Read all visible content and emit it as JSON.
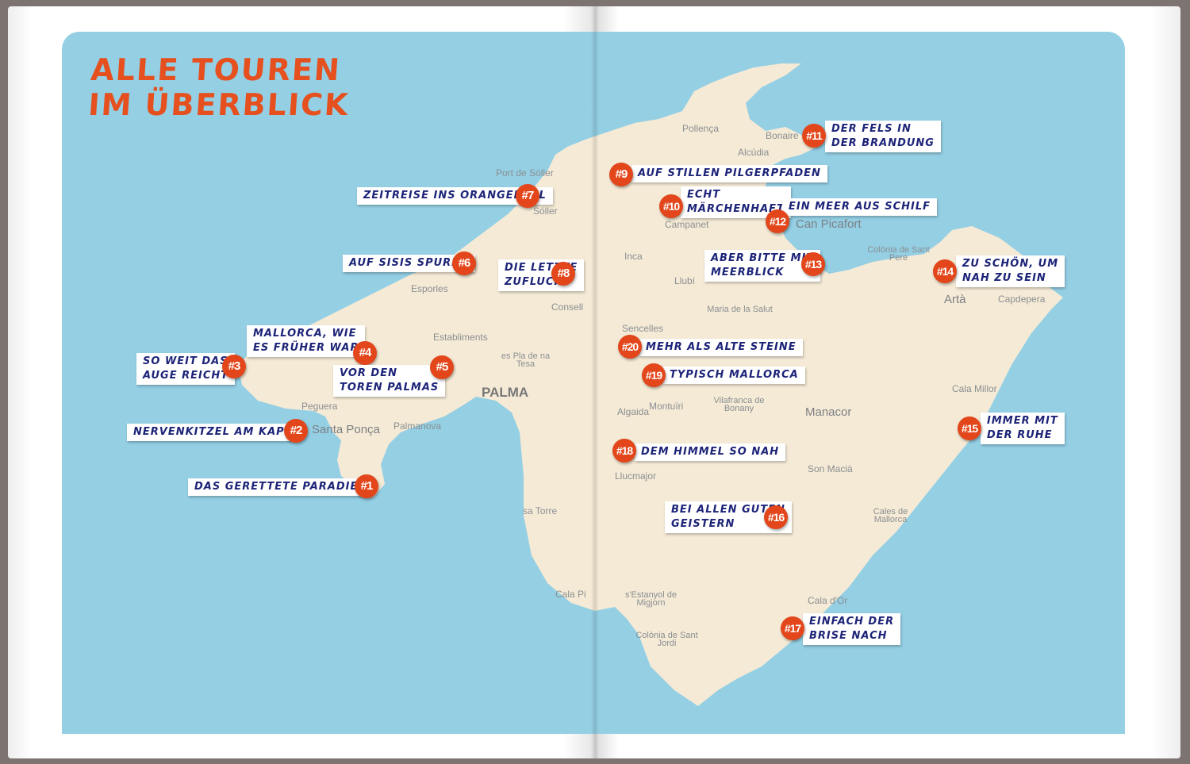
{
  "title": {
    "line1": "ALLE TOUREN",
    "line2": "IM ÜBERBLICK"
  },
  "colors": {
    "sea": "#94cfe4",
    "land": "#f5ead6",
    "title": "#e5501e",
    "badge": "#e2461a",
    "label_text": "#1d2478"
  },
  "tours": [
    {
      "number": "#1",
      "lines": [
        "Das gerettete Paradies"
      ]
    },
    {
      "number": "#2",
      "lines": [
        "Nervenkitzel am Kap"
      ]
    },
    {
      "number": "#3",
      "lines": [
        "So weit das",
        "Auge reicht"
      ]
    },
    {
      "number": "#4",
      "lines": [
        "Mallorca, wie",
        "es früher war"
      ]
    },
    {
      "number": "#5",
      "lines": [
        "Vor den",
        "Toren Palmas"
      ]
    },
    {
      "number": "#6",
      "lines": [
        "Auf Sisis Spuren"
      ]
    },
    {
      "number": "#7",
      "lines": [
        "Zeitreise ins Orangental"
      ]
    },
    {
      "number": "#8",
      "lines": [
        "Die letzte",
        "Zuflucht"
      ]
    },
    {
      "number": "#9",
      "lines": [
        "Auf stillen Pilgerpfaden"
      ]
    },
    {
      "number": "#10",
      "lines": [
        "Echt",
        "märchenhaft"
      ]
    },
    {
      "number": "#11",
      "lines": [
        "Der Fels in",
        "der Brandung"
      ]
    },
    {
      "number": "#12",
      "lines": [
        "Ein Meer aus Schilf"
      ]
    },
    {
      "number": "#13",
      "lines": [
        "Aber bitte mit",
        "Meerblick"
      ]
    },
    {
      "number": "#14",
      "lines": [
        "Zu schön, um",
        "nah zu sein"
      ]
    },
    {
      "number": "#15",
      "lines": [
        "Immer mit",
        "der Ruhe"
      ]
    },
    {
      "number": "#16",
      "lines": [
        "Bei allen guten",
        "Geistern"
      ]
    },
    {
      "number": "#17",
      "lines": [
        "Einfach der",
        "Brise nach"
      ]
    },
    {
      "number": "#18",
      "lines": [
        "Dem Himmel so nah"
      ]
    },
    {
      "number": "#19",
      "lines": [
        "Typisch Mallorca"
      ]
    },
    {
      "number": "#20",
      "lines": [
        "Mehr als alte Steine"
      ]
    }
  ],
  "places": [
    {
      "name": "Port de Sóller"
    },
    {
      "name": "Sóller"
    },
    {
      "name": "Esporles"
    },
    {
      "name": "Consell"
    },
    {
      "name": "Establiments"
    },
    {
      "name": "es Pla de na Tesa"
    },
    {
      "name": "PALMA"
    },
    {
      "name": "Peguera"
    },
    {
      "name": "Santa Ponça"
    },
    {
      "name": "Palmanova"
    },
    {
      "name": "Pollença"
    },
    {
      "name": "Bonaire"
    },
    {
      "name": "Alcúdia"
    },
    {
      "name": "Campanet"
    },
    {
      "name": "Can Picafort"
    },
    {
      "name": "Inca"
    },
    {
      "name": "Llubí"
    },
    {
      "name": "Colònia de Sant Pere"
    },
    {
      "name": "Artà"
    },
    {
      "name": "Capdepera"
    },
    {
      "name": "Maria de la Salut"
    },
    {
      "name": "Sencelles"
    },
    {
      "name": "Algaida"
    },
    {
      "name": "Montuïri"
    },
    {
      "name": "Vilafranca de Bonany"
    },
    {
      "name": "Manacor"
    },
    {
      "name": "Cala Millor"
    },
    {
      "name": "Llucmajor"
    },
    {
      "name": "Son Macià"
    },
    {
      "name": "Cales de Mallorca"
    },
    {
      "name": "Cala d'Or"
    },
    {
      "name": "Colònia de Sant Jordi"
    },
    {
      "name": "s'Estanyol de Migjorn"
    },
    {
      "name": "Cala Pi"
    },
    {
      "name": "sa Torre"
    }
  ]
}
